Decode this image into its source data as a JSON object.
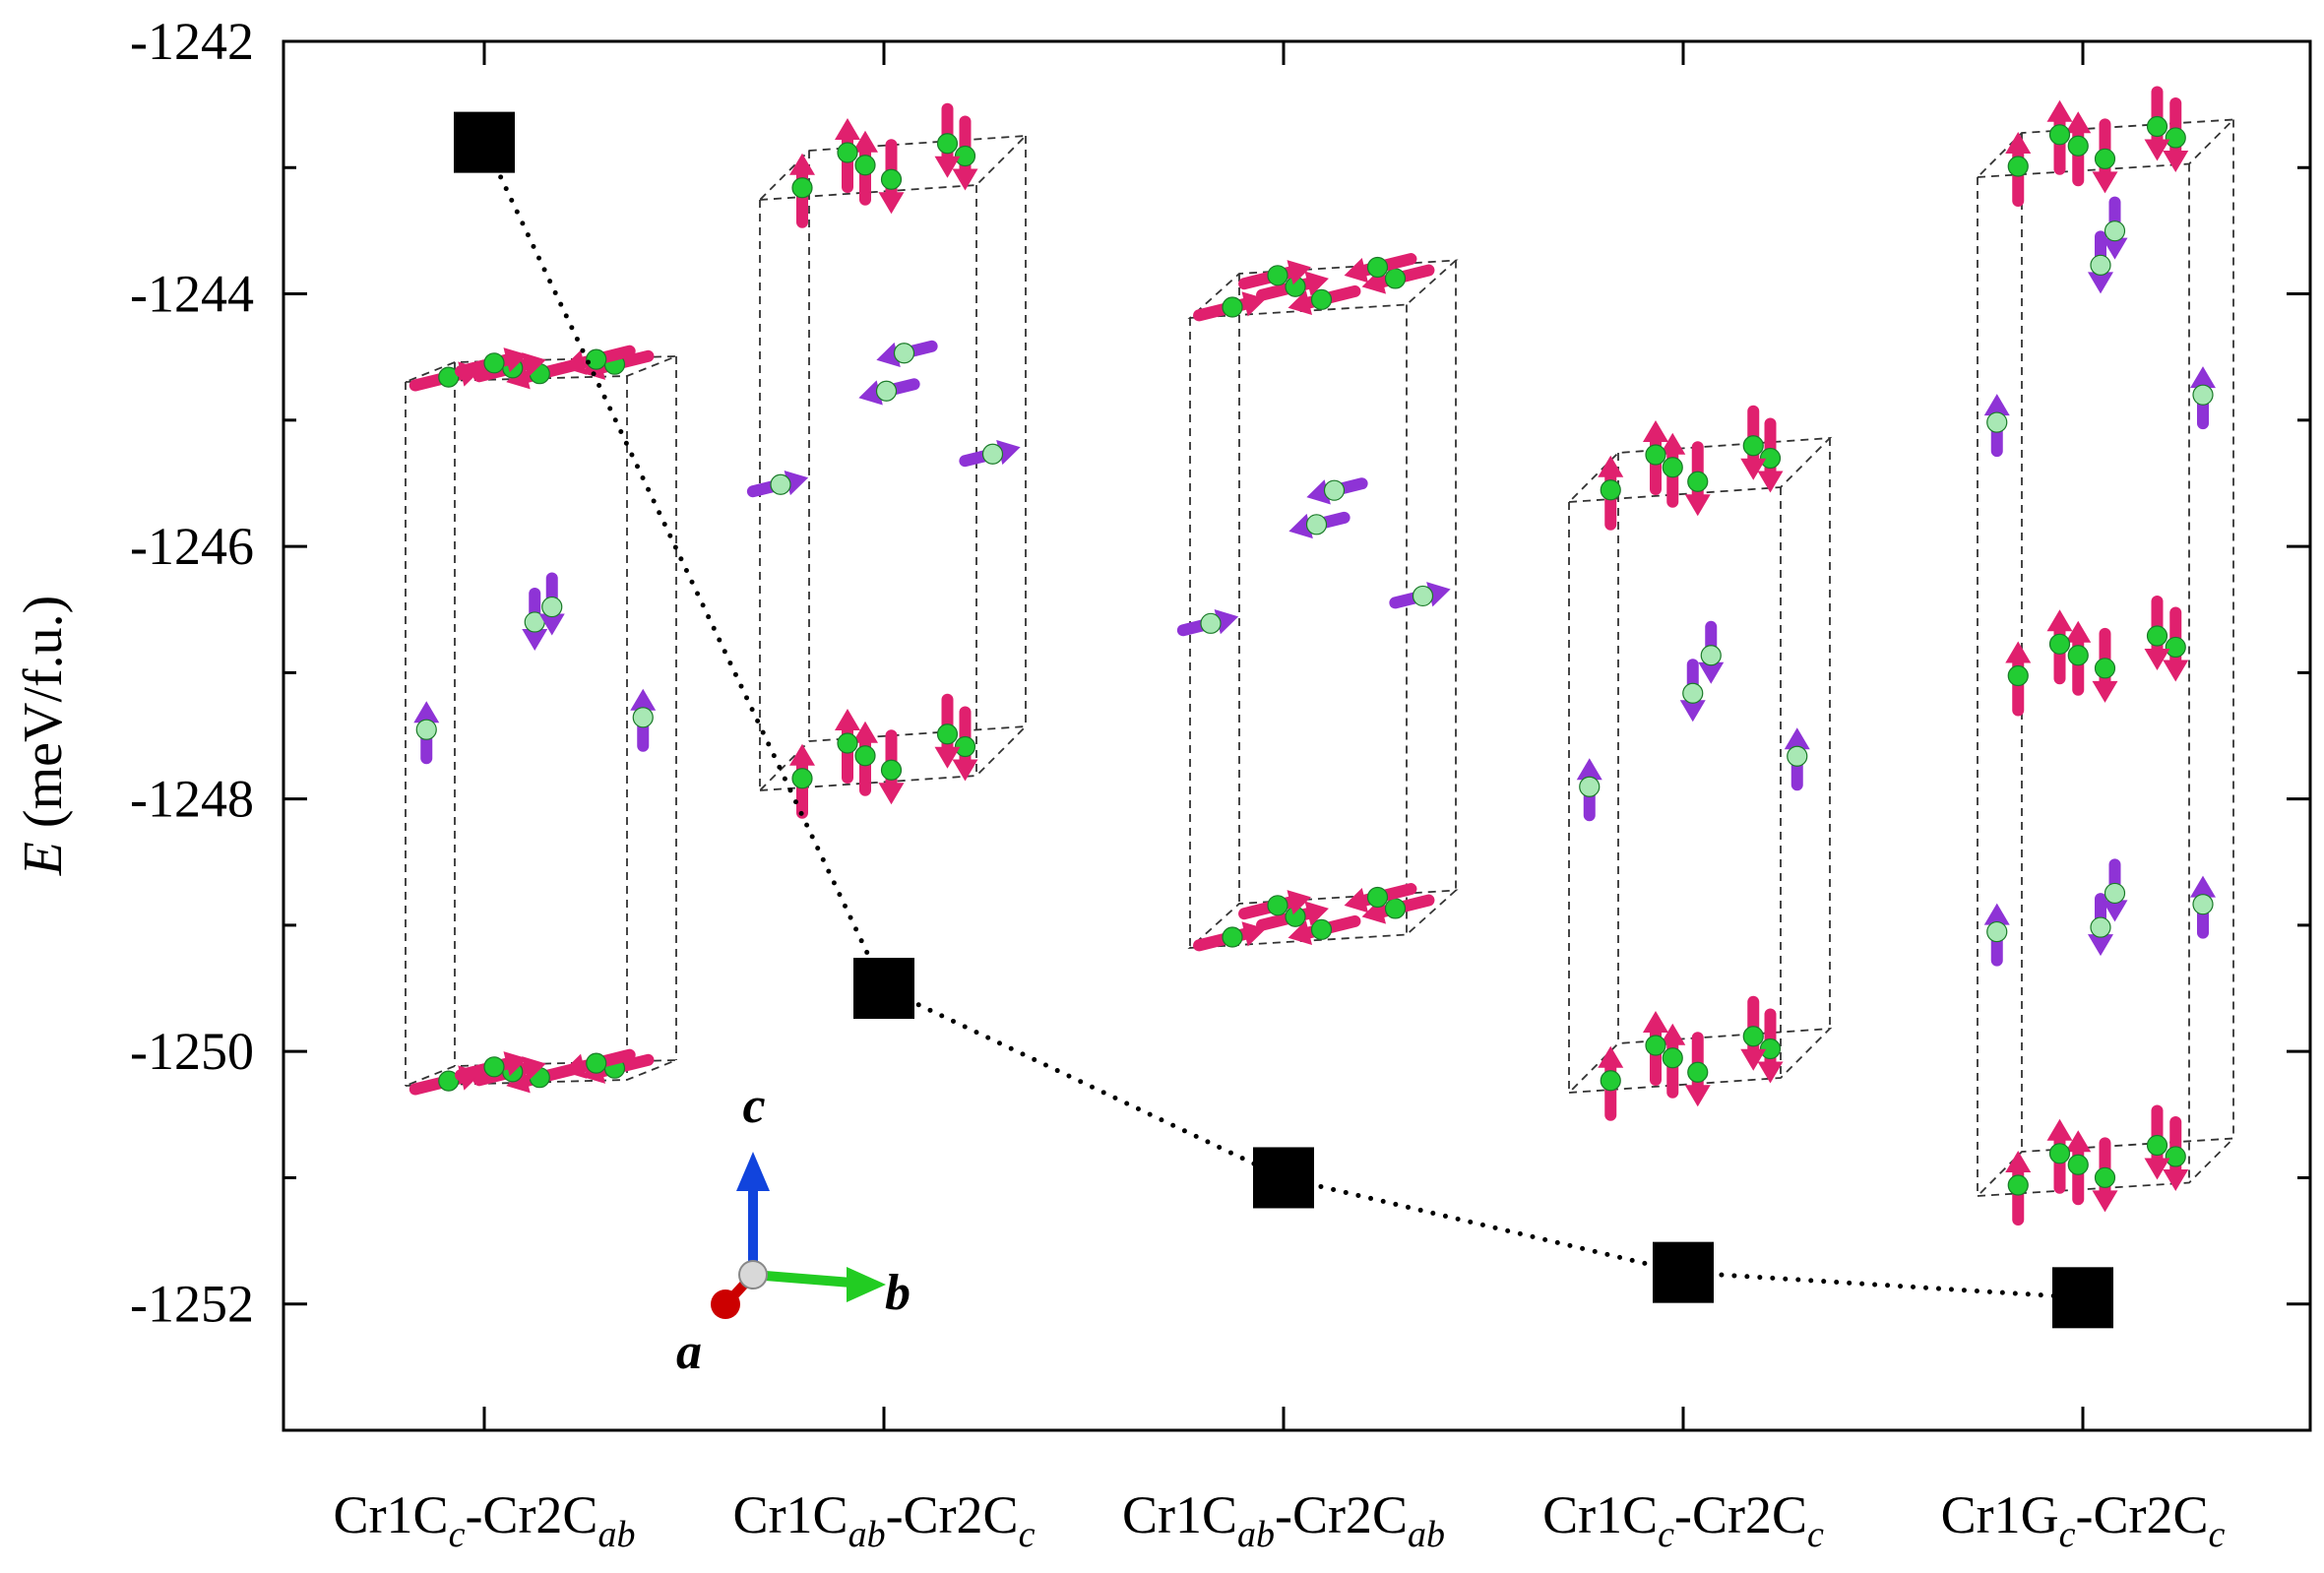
{
  "chart_data": {
    "type": "scatter",
    "title": "",
    "xlabel": "",
    "ylabel": {
      "symbol": "E",
      "unit": " (meV/f.u.)"
    },
    "ylim": [
      -1253,
      -1242
    ],
    "y_major_ticks": [
      -1242,
      -1244,
      -1246,
      -1248,
      -1250,
      -1252
    ],
    "y_tick_labels": [
      "-1242",
      "-1244",
      "-1246",
      "-1248",
      "-1250",
      "-1252"
    ],
    "grid": false,
    "legend": "none",
    "marker": "square",
    "marker_color": "#000000",
    "connector": "dotted",
    "categories": [
      {
        "key": "c1",
        "label_parts": [
          {
            "t": "Cr1C"
          },
          {
            "t": "c",
            "sub": true
          },
          {
            "t": "-Cr2C"
          },
          {
            "t": "ab",
            "sub": true
          }
        ]
      },
      {
        "key": "c2",
        "label_parts": [
          {
            "t": "Cr1C"
          },
          {
            "t": "ab",
            "sub": true
          },
          {
            "t": "-Cr2C"
          },
          {
            "t": "c",
            "sub": true
          }
        ]
      },
      {
        "key": "c3",
        "label_parts": [
          {
            "t": "Cr1C"
          },
          {
            "t": "ab",
            "sub": true
          },
          {
            "t": "-Cr2C"
          },
          {
            "t": "ab",
            "sub": true
          }
        ]
      },
      {
        "key": "c4",
        "label_parts": [
          {
            "t": "Cr1C"
          },
          {
            "t": "c",
            "sub": true
          },
          {
            "t": "-Cr2C"
          },
          {
            "t": "c",
            "sub": true
          }
        ]
      },
      {
        "key": "c5",
        "label_parts": [
          {
            "t": "Cr1G"
          },
          {
            "t": "c",
            "sub": true
          },
          {
            "t": "-Cr2C"
          },
          {
            "t": "c",
            "sub": true
          }
        ]
      }
    ],
    "values": [
      -1242.8,
      -1249.5,
      -1251.0,
      -1251.75,
      -1251.95
    ],
    "axis_triad": {
      "labels": [
        "a",
        "b",
        "c"
      ],
      "colors": {
        "a": "#cc0000",
        "b": "#22cc22",
        "c": "#1144dd"
      }
    },
    "insets": {
      "count": 5,
      "description": "Spin configurations of Cr sublattices",
      "colors": {
        "cr1_spin": "#e0206e",
        "cr2_spin": "#8e33d6",
        "atom_bright": "#22cc33",
        "atom_pale": "#a8e8b4",
        "cell_edge": "#333333"
      }
    }
  }
}
